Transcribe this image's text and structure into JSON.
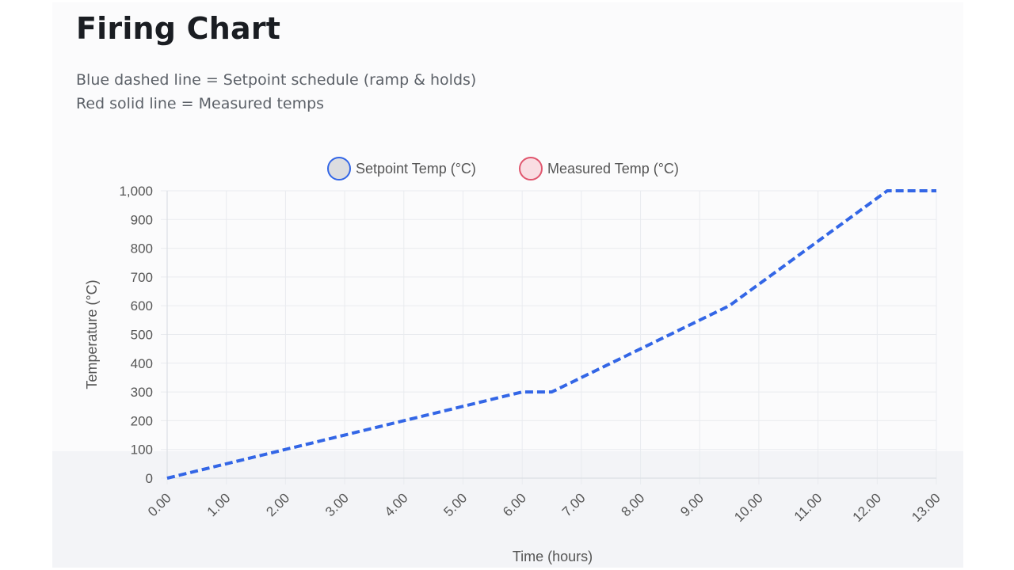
{
  "page": {
    "title": "Firing Chart",
    "description_lines": [
      "Blue dashed line = Setpoint schedule (ramp & holds)",
      "Red solid line = Measured temps"
    ]
  },
  "colors": {
    "setpoint": "#3366e6",
    "measured": "#e0566e",
    "grid": "#e9ebef",
    "tick_text": "#555555"
  },
  "chart_data": {
    "type": "line",
    "xlabel": "Time (hours)",
    "ylabel": "Temperature (°C)",
    "xlim": [
      0,
      13
    ],
    "ylim": [
      0,
      1000
    ],
    "x_ticks": [
      "0.00",
      "1.00",
      "2.00",
      "3.00",
      "4.00",
      "5.00",
      "6.00",
      "7.00",
      "8.00",
      "9.00",
      "10.00",
      "11.00",
      "12.00",
      "13.00"
    ],
    "y_ticks": [
      "0",
      "100",
      "200",
      "300",
      "400",
      "500",
      "600",
      "700",
      "800",
      "900",
      "1,000"
    ],
    "legend": {
      "position": "top"
    },
    "grid": true,
    "series": [
      {
        "name": "Setpoint Temp (°C)",
        "style": "dashed",
        "color": "#3366e6",
        "points": [
          [
            0,
            0
          ],
          [
            6,
            300
          ],
          [
            6.5,
            300
          ],
          [
            9.5,
            600
          ],
          [
            12.17,
            1000
          ],
          [
            13,
            1000
          ]
        ]
      },
      {
        "name": "Measured Temp (°C)",
        "style": "solid",
        "color": "#e0566e",
        "points": []
      }
    ]
  }
}
